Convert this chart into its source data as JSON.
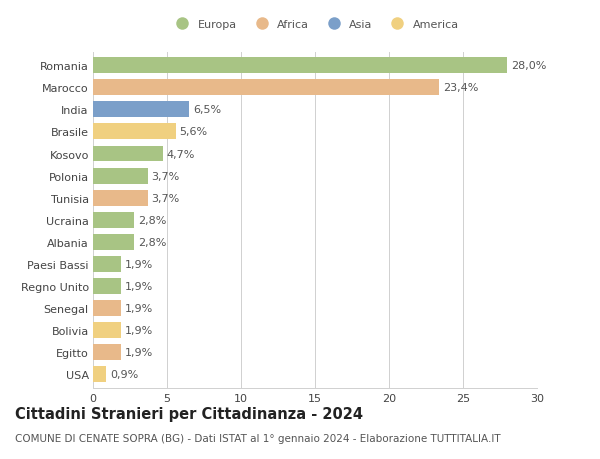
{
  "categories": [
    "Romania",
    "Marocco",
    "India",
    "Brasile",
    "Kosovo",
    "Polonia",
    "Tunisia",
    "Ucraina",
    "Albania",
    "Paesi Bassi",
    "Regno Unito",
    "Senegal",
    "Bolivia",
    "Egitto",
    "USA"
  ],
  "values": [
    28.0,
    23.4,
    6.5,
    5.6,
    4.7,
    3.7,
    3.7,
    2.8,
    2.8,
    1.9,
    1.9,
    1.9,
    1.9,
    1.9,
    0.9
  ],
  "labels": [
    "28,0%",
    "23,4%",
    "6,5%",
    "5,6%",
    "4,7%",
    "3,7%",
    "3,7%",
    "2,8%",
    "2,8%",
    "1,9%",
    "1,9%",
    "1,9%",
    "1,9%",
    "1,9%",
    "0,9%"
  ],
  "colors": [
    "#a8c484",
    "#e8b98a",
    "#7b9fc9",
    "#f0d080",
    "#a8c484",
    "#a8c484",
    "#e8b98a",
    "#a8c484",
    "#a8c484",
    "#a8c484",
    "#a8c484",
    "#e8b98a",
    "#f0d080",
    "#e8b98a",
    "#f0d080"
  ],
  "legend_labels": [
    "Europa",
    "Africa",
    "Asia",
    "America"
  ],
  "legend_colors": [
    "#a8c484",
    "#e8b98a",
    "#7b9fc9",
    "#f0d080"
  ],
  "title": "Cittadini Stranieri per Cittadinanza - 2024",
  "subtitle": "COMUNE DI CENATE SOPRA (BG) - Dati ISTAT al 1° gennaio 2024 - Elaborazione TUTTITALIA.IT",
  "xlim": [
    0,
    30
  ],
  "xticks": [
    0,
    5,
    10,
    15,
    20,
    25,
    30
  ],
  "background_color": "#ffffff",
  "grid_color": "#d0d0d0",
  "bar_height": 0.72,
  "label_fontsize": 8,
  "tick_fontsize": 8,
  "title_fontsize": 10.5,
  "subtitle_fontsize": 7.5
}
